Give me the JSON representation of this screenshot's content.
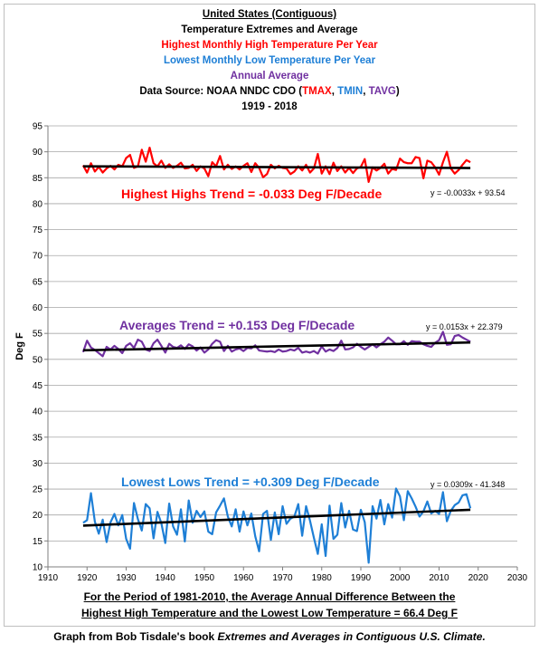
{
  "title_lines": [
    {
      "text": "United States (Contiguous)",
      "color": "#000000",
      "underline": true
    },
    {
      "text": "Temperature Extremes and Average",
      "color": "#000000",
      "underline": false
    },
    {
      "text": "Highest Monthly High Temperature Per Year",
      "color": "#ff0000",
      "underline": false
    },
    {
      "text": "Lowest Monthly Low Temperature Per Year",
      "color": "#1e7fd6",
      "underline": false
    },
    {
      "text": "Annual Average",
      "color": "#7030a0",
      "underline": false
    }
  ],
  "source_line": {
    "prefix": "Data Source: NOAA NNDC CDO (",
    "tmax": "TMAX",
    "sep1": ", ",
    "tmin": "TMIN",
    "sep2": ", ",
    "tavg": "TAVG",
    "suffix": ")"
  },
  "years_line": "1919 - 2018",
  "note_lines": [
    "For the Period of 1981-2010, the Average Annual Difference Between the",
    "Highest High Temperature and the Lowest Low Temperature = 66.4 Deg F"
  ],
  "footer": {
    "prefix": "Graph from Bob Tisdale's book ",
    "book": "Extremes and Averages in Contiguous U.S. Climate."
  },
  "chart_data": {
    "type": "line",
    "ylabel": "Deg F",
    "xlabel": "",
    "xlim": [
      1910,
      2030
    ],
    "ylim": [
      10,
      95
    ],
    "xticks": [
      1910,
      1920,
      1930,
      1940,
      1950,
      1960,
      1970,
      1980,
      1990,
      2000,
      2010,
      2020,
      2030
    ],
    "yticks": [
      10,
      15,
      20,
      25,
      30,
      35,
      40,
      45,
      50,
      55,
      60,
      65,
      70,
      75,
      80,
      85,
      90,
      95
    ],
    "grid": true,
    "x_start": 1919,
    "series": [
      {
        "key": "tmax",
        "color": "#ff0000",
        "values": [
          87.4,
          86.0,
          87.8,
          86.2,
          87.1,
          86.0,
          86.8,
          87.3,
          86.6,
          87.5,
          87.2,
          88.8,
          89.4,
          86.9,
          87.2,
          90.4,
          88.1,
          90.8,
          87.8,
          87.2,
          88.3,
          86.9,
          87.6,
          86.9,
          87.3,
          87.9,
          86.8,
          86.9,
          87.5,
          86.3,
          87.2,
          86.8,
          85.3,
          88.0,
          87.2,
          89.2,
          86.6,
          87.5,
          86.7,
          87.2,
          86.6,
          87.3,
          87.8,
          86.1,
          87.8,
          86.9,
          85.1,
          85.7,
          87.5,
          86.8,
          87.3,
          86.9,
          86.8,
          85.7,
          86.2,
          87.2,
          86.4,
          87.5,
          86.0,
          86.8,
          89.6,
          85.8,
          87.2,
          85.7,
          87.9,
          86.3,
          87.2,
          86.0,
          86.9,
          85.9,
          86.8,
          87.1,
          88.6,
          84.2,
          87.0,
          86.4,
          86.9,
          87.7,
          85.8,
          86.7,
          86.5,
          88.7,
          88.0,
          87.8,
          87.8,
          89.0,
          88.8,
          84.9,
          88.3,
          88.0,
          87.0,
          85.6,
          88.0,
          90.0,
          86.8,
          85.8,
          86.5,
          87.5,
          88.4,
          88.0
        ]
      },
      {
        "key": "tavg",
        "color": "#7030a0",
        "values": [
          51.4,
          53.6,
          52.3,
          51.8,
          51.2,
          50.6,
          52.4,
          51.9,
          52.6,
          52.0,
          51.2,
          52.6,
          53.1,
          52.2,
          53.8,
          53.4,
          51.9,
          51.6,
          53.1,
          53.8,
          52.6,
          51.3,
          53.0,
          52.4,
          52.2,
          52.7,
          52.0,
          52.9,
          52.5,
          51.7,
          52.3,
          51.3,
          51.9,
          53.0,
          53.7,
          53.4,
          51.6,
          52.6,
          51.5,
          51.9,
          52.1,
          51.6,
          52.2,
          52.1,
          52.7,
          51.7,
          51.6,
          51.5,
          51.6,
          51.4,
          51.9,
          51.5,
          51.6,
          51.9,
          51.7,
          52.2,
          51.3,
          51.5,
          51.3,
          51.6,
          51.1,
          52.5,
          51.5,
          51.9,
          51.6,
          52.2,
          53.6,
          51.9,
          52.0,
          52.3,
          53.0,
          52.4,
          51.9,
          52.4,
          52.9,
          52.3,
          52.9,
          53.4,
          54.2,
          53.6,
          52.9,
          52.9,
          53.5,
          52.8,
          53.5,
          53.4,
          53.4,
          52.9,
          52.6,
          52.4,
          53.2,
          53.7,
          55.3,
          52.8,
          52.9,
          54.5,
          54.7,
          54.2,
          53.8,
          53.4
        ]
      },
      {
        "key": "tmin",
        "color": "#1e7fd6",
        "values": [
          18.5,
          19.0,
          24.2,
          18.7,
          16.4,
          19.1,
          14.8,
          18.6,
          20.2,
          18.0,
          20.0,
          15.4,
          13.5,
          22.3,
          19.2,
          17.0,
          22.1,
          21.3,
          15.5,
          20.6,
          18.4,
          14.6,
          22.2,
          17.8,
          16.2,
          21.1,
          14.9,
          22.8,
          18.5,
          20.8,
          19.6,
          20.7,
          16.8,
          16.3,
          20.5,
          21.8,
          23.2,
          19.7,
          17.8,
          21.1,
          16.8,
          20.7,
          18.0,
          20.3,
          15.9,
          13.0,
          20.2,
          20.8,
          15.2,
          20.5,
          16.3,
          21.7,
          18.3,
          19.3,
          19.7,
          22.1,
          16.0,
          21.7,
          18.9,
          15.6,
          12.5,
          18.2,
          12.1,
          21.8,
          15.4,
          16.2,
          22.3,
          17.6,
          20.8,
          17.2,
          16.9,
          21.0,
          18.6,
          10.8,
          21.7,
          19.3,
          22.9,
          18.2,
          22.1,
          19.5,
          25.1,
          23.6,
          19.0,
          24.6,
          23.2,
          21.6,
          19.7,
          20.7,
          22.6,
          20.3,
          20.8,
          20.2,
          24.4,
          18.8,
          20.8,
          21.9,
          22.4,
          23.8,
          24.0,
          21.3
        ]
      }
    ],
    "trendlines": [
      {
        "key": "tmax",
        "slope": -0.0033,
        "intercept": 93.54,
        "equation": "y = -0.0033x + 93.54",
        "label": "Highest Highs Trend = -0.033 Deg F/Decade",
        "label_color": "#ff0000"
      },
      {
        "key": "tavg",
        "slope": 0.0153,
        "intercept": 22.379,
        "equation": "y = 0.0153x + 22.379",
        "label": "Averages Trend = +0.153 Deg F/Decade",
        "label_color": "#7030a0"
      },
      {
        "key": "tmin",
        "slope": 0.0309,
        "intercept": -41.348,
        "equation": "y = 0.0309x - 41.348",
        "label": "Lowest Lows Trend = +0.309 Deg F/Decade",
        "label_color": "#1e7fd6"
      }
    ]
  }
}
